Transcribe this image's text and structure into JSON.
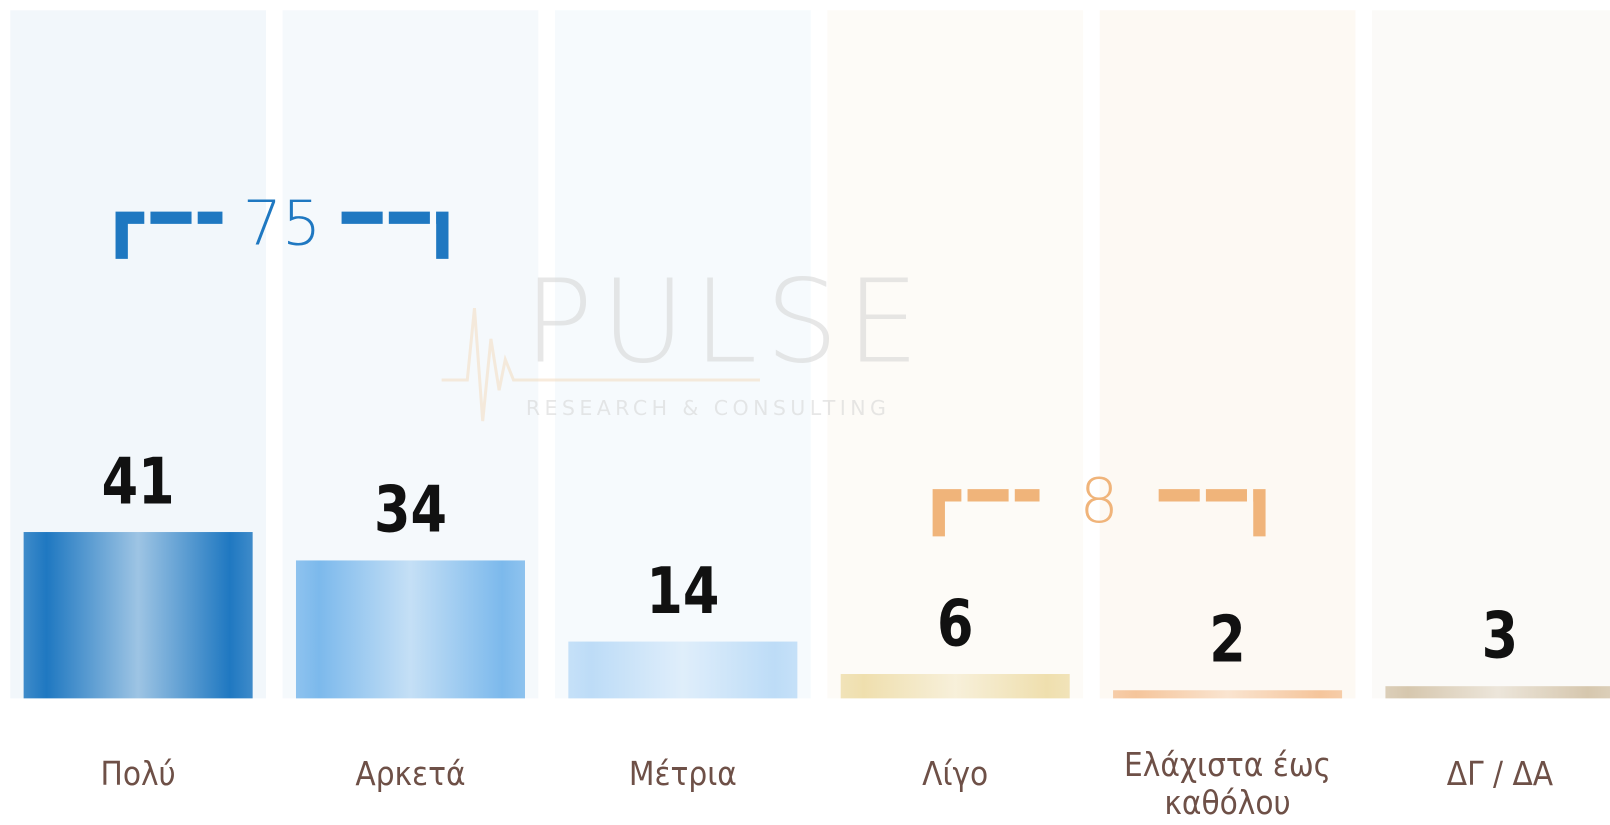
{
  "chart_data": {
    "type": "bar",
    "categories": [
      "Πολύ",
      "Αρκετά",
      "Μέτρια",
      "Λίγο",
      "Ελάχιστα έως καθόλου",
      "ΔΓ / ΔΑ"
    ],
    "values": [
      41,
      34,
      14,
      6,
      2,
      3
    ],
    "colors": [
      "#1f78c1",
      "#7cb9ec",
      "#bddcf7",
      "#efdfae",
      "#f5c59b",
      "#d6c7ae"
    ],
    "column_colors": [
      "#f2f7fb",
      "#f5f9fc",
      "#f6fafd",
      "#fdfbf7",
      "#fdf9f3",
      "#fbfaf8"
    ],
    "brackets": [
      {
        "label": 75,
        "categories": [
          "Πολύ",
          "Αρκετά"
        ],
        "color": "#1f78c1"
      },
      {
        "label": 8,
        "categories": [
          "Λίγο",
          "Ελάχιστα έως καθόλου"
        ],
        "color": "#f0b47a"
      }
    ],
    "watermark": {
      "title": "PULSE",
      "subtitle": "RESEARCH & CONSULTING"
    }
  }
}
